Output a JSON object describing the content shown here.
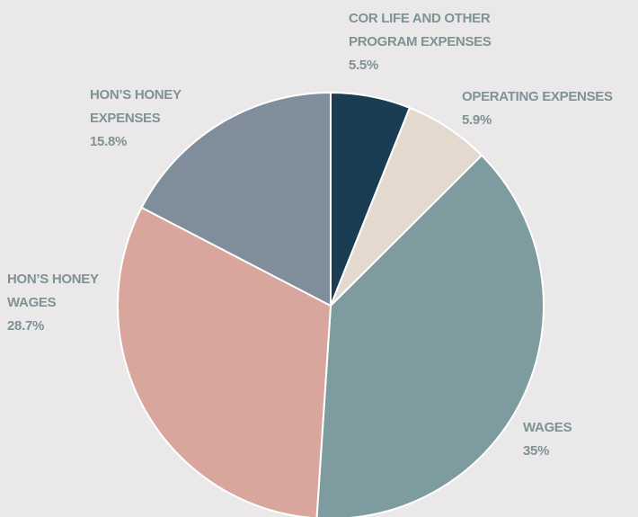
{
  "chart_data": {
    "type": "pie",
    "categories": [
      "COR LIFE AND OTHER PROGRAM EXPENSES",
      "OPERATING EXPENSES",
      "WAGES",
      "HON’S HONEY WAGES",
      "HON’S HONEY EXPENSES"
    ],
    "values": [
      5.5,
      5.9,
      35,
      28.7,
      15.8
    ],
    "value_labels": [
      "5.5%",
      "5.9%",
      "35%",
      "28.7%",
      "15.8%"
    ],
    "colors": [
      "#1b3d53",
      "#e3d9cf",
      "#7e9ca0",
      "#d9a69d",
      "#808d9a"
    ]
  }
}
